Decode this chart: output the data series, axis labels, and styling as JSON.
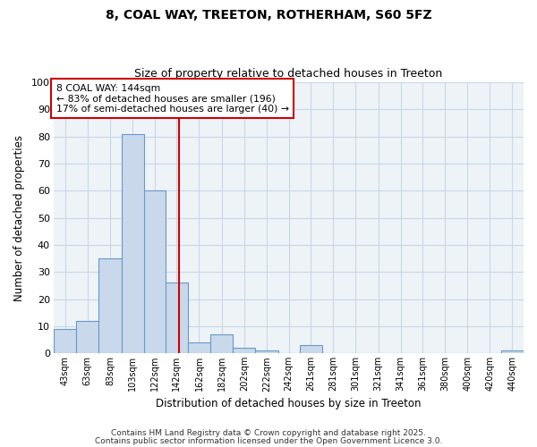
{
  "title1": "8, COAL WAY, TREETON, ROTHERHAM, S60 5FZ",
  "title2": "Size of property relative to detached houses in Treeton",
  "xlabel": "Distribution of detached houses by size in Treeton",
  "ylabel": "Number of detached properties",
  "bin_labels": [
    "43sqm",
    "63sqm",
    "83sqm",
    "103sqm",
    "122sqm",
    "142sqm",
    "162sqm",
    "182sqm",
    "202sqm",
    "222sqm",
    "242sqm",
    "261sqm",
    "281sqm",
    "301sqm",
    "321sqm",
    "341sqm",
    "361sqm",
    "380sqm",
    "400sqm",
    "420sqm",
    "440sqm"
  ],
  "bin_edges": [
    33,
    53,
    73,
    93,
    113,
    132,
    152,
    172,
    192,
    212,
    232,
    251,
    271,
    291,
    311,
    331,
    351,
    370,
    390,
    410,
    430,
    450
  ],
  "heights": [
    9,
    12,
    35,
    81,
    60,
    26,
    4,
    7,
    2,
    1,
    0,
    3,
    0,
    0,
    0,
    0,
    0,
    0,
    0,
    0,
    1
  ],
  "bar_color": "#c9d9eb",
  "bar_edge_color": "#6699cc",
  "vline_x": 144,
  "vline_color": "#cc0000",
  "annotation_text": "8 COAL WAY: 144sqm\n← 83% of detached houses are smaller (196)\n17% of semi-detached houses are larger (40) →",
  "annotation_box_color": "#cc0000",
  "ylim": [
    0,
    100
  ],
  "yticks": [
    0,
    10,
    20,
    30,
    40,
    50,
    60,
    70,
    80,
    90,
    100
  ],
  "fig_bg_color": "#ffffff",
  "ax_bg_color": "#eef3f8",
  "grid_color": "#c8d8e8",
  "footer1": "Contains HM Land Registry data © Crown copyright and database right 2025.",
  "footer2": "Contains public sector information licensed under the Open Government Licence 3.0."
}
